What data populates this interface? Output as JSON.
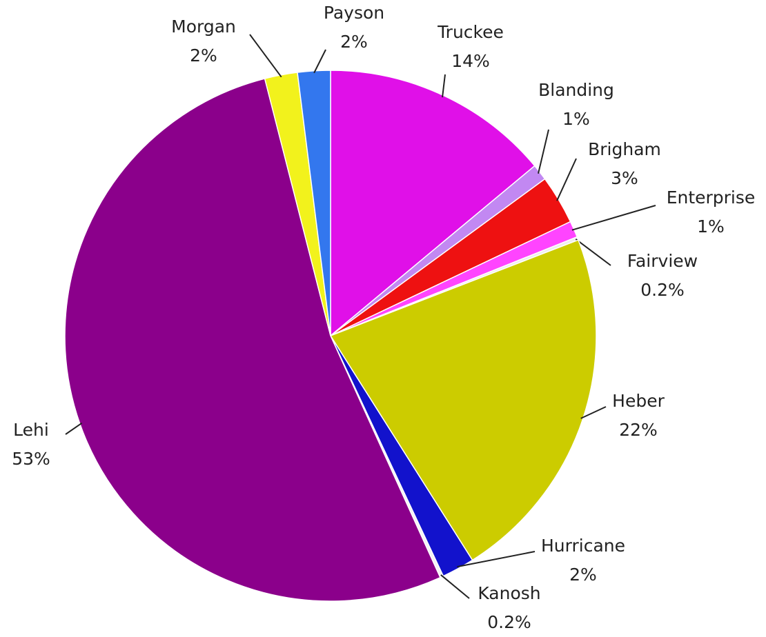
{
  "chart_data": {
    "type": "pie",
    "categories": [
      "Truckee",
      "Blanding",
      "Brigham",
      "Enterprise",
      "Fairview",
      "Heber",
      "Hurricane",
      "Kanosh",
      "Lehi",
      "Morgan",
      "Payson"
    ],
    "values": [
      14,
      1,
      3,
      1,
      0.2,
      22,
      2,
      0.2,
      53,
      2,
      2
    ],
    "value_labels": [
      "14%",
      "1%",
      "3%",
      "1%",
      "0.2%",
      "22%",
      "2%",
      "0.2%",
      "53%",
      "2%",
      "2%"
    ],
    "colors": [
      "#e010e8",
      "#c288f2",
      "#ee1111",
      "#ff44ff",
      "#eeeeee",
      "#cccc00",
      "#1212cc",
      "#f4f4f4",
      "#8b008b",
      "#f2f21c",
      "#3377ee"
    ]
  }
}
